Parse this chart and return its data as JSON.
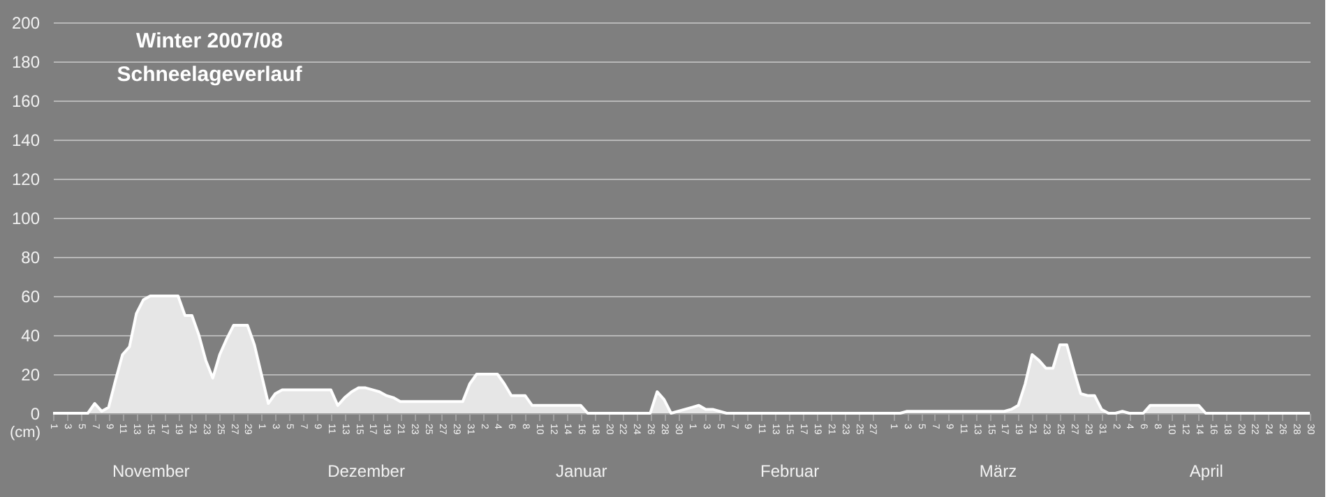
{
  "chart_data": {
    "type": "area",
    "title": "Winter 2007/08",
    "subtitle": "Schneelageverlauf",
    "ylabel": "(cm)",
    "series": [
      {
        "color": "#e6e6e6",
        "x": [
          "2007-11-01",
          "2007-11-06",
          "2007-11-07",
          "2007-11-08",
          "2007-11-09",
          "2007-11-10",
          "2007-11-11",
          "2007-11-12",
          "2007-11-13",
          "2007-11-14",
          "2007-11-15",
          "2007-11-19",
          "2007-11-20",
          "2007-11-21",
          "2007-11-22",
          "2007-11-23",
          "2007-11-24",
          "2007-11-25",
          "2007-11-26",
          "2007-11-27",
          "2007-11-29",
          "2007-11-30",
          "2007-12-01",
          "2007-12-02",
          "2007-12-03",
          "2007-12-04",
          "2007-12-11",
          "2007-12-12",
          "2007-12-13",
          "2007-12-14",
          "2007-12-15",
          "2007-12-16",
          "2007-12-17",
          "2007-12-18",
          "2007-12-19",
          "2007-12-20",
          "2007-12-21",
          "2007-12-30",
          "2007-12-31",
          "2008-01-01",
          "2008-01-04",
          "2008-01-05",
          "2008-01-06",
          "2008-01-08",
          "2008-01-09",
          "2008-01-16",
          "2008-01-17",
          "2008-01-26",
          "2008-01-27",
          "2008-01-28",
          "2008-01-29",
          "2008-01-30",
          "2008-01-31",
          "2008-02-01",
          "2008-02-02",
          "2008-02-03",
          "2008-02-04",
          "2008-02-05",
          "2008-02-06",
          "2008-03-02",
          "2008-03-03",
          "2008-03-17",
          "2008-03-18",
          "2008-03-19",
          "2008-03-20",
          "2008-03-21",
          "2008-03-22",
          "2008-03-23",
          "2008-03-24",
          "2008-03-25",
          "2008-03-26",
          "2008-03-27",
          "2008-03-28",
          "2008-03-29",
          "2008-03-30",
          "2008-03-31",
          "2008-04-01",
          "2008-04-02",
          "2008-04-03",
          "2008-04-04",
          "2008-04-06",
          "2008-04-07",
          "2008-04-14",
          "2008-04-15",
          "2008-04-30"
        ],
        "values": [
          0,
          0,
          5,
          1,
          3,
          17,
          30,
          34,
          51,
          58,
          60,
          60,
          50,
          50,
          40,
          27,
          18,
          30,
          38,
          45,
          45,
          35,
          20,
          5,
          10,
          12,
          12,
          4,
          8,
          11,
          13,
          13,
          12,
          11,
          9,
          8,
          6,
          6,
          15,
          20,
          20,
          15,
          9,
          9,
          4,
          4,
          0,
          0,
          11,
          7,
          0,
          1,
          2,
          3,
          4,
          2,
          2,
          1,
          0,
          0,
          1,
          1,
          2,
          4,
          15,
          30,
          27,
          23,
          23,
          35,
          35,
          22,
          10,
          9,
          9,
          2,
          0,
          0,
          1,
          0,
          0,
          4,
          4,
          0,
          0
        ]
      }
    ],
    "xlim": [
      "2007-11-01",
      "2008-04-30"
    ],
    "xticks": [
      {
        "value": "2007-11-01",
        "label": "1"
      },
      {
        "value": "2007-11-03",
        "label": "3"
      },
      {
        "value": "2007-11-05",
        "label": "5"
      },
      {
        "value": "2007-11-07",
        "label": "7"
      },
      {
        "value": "2007-11-09",
        "label": "9"
      },
      {
        "value": "2007-11-11",
        "label": "11"
      },
      {
        "value": "2007-11-13",
        "label": "13"
      },
      {
        "value": "2007-11-15",
        "label": "15"
      },
      {
        "value": "2007-11-17",
        "label": "17"
      },
      {
        "value": "2007-11-19",
        "label": "19"
      },
      {
        "value": "2007-11-21",
        "label": "21"
      },
      {
        "value": "2007-11-23",
        "label": "23"
      },
      {
        "value": "2007-11-25",
        "label": "25"
      },
      {
        "value": "2007-11-27",
        "label": "27"
      },
      {
        "value": "2007-11-29",
        "label": "29"
      },
      {
        "value": "2007-12-01",
        "label": "1"
      },
      {
        "value": "2007-12-03",
        "label": "3"
      },
      {
        "value": "2007-12-05",
        "label": "5"
      },
      {
        "value": "2007-12-07",
        "label": "7"
      },
      {
        "value": "2007-12-09",
        "label": "9"
      },
      {
        "value": "2007-12-11",
        "label": "11"
      },
      {
        "value": "2007-12-13",
        "label": "13"
      },
      {
        "value": "2007-12-15",
        "label": "15"
      },
      {
        "value": "2007-12-17",
        "label": "17"
      },
      {
        "value": "2007-12-19",
        "label": "19"
      },
      {
        "value": "2007-12-21",
        "label": "21"
      },
      {
        "value": "2007-12-23",
        "label": "23"
      },
      {
        "value": "2007-12-25",
        "label": "25"
      },
      {
        "value": "2007-12-27",
        "label": "27"
      },
      {
        "value": "2007-12-29",
        "label": "29"
      },
      {
        "value": "2007-12-31",
        "label": "31"
      },
      {
        "value": "2008-01-02",
        "label": "2"
      },
      {
        "value": "2008-01-04",
        "label": "4"
      },
      {
        "value": "2008-01-06",
        "label": "6"
      },
      {
        "value": "2008-01-08",
        "label": "8"
      },
      {
        "value": "2008-01-10",
        "label": "10"
      },
      {
        "value": "2008-01-12",
        "label": "12"
      },
      {
        "value": "2008-01-14",
        "label": "14"
      },
      {
        "value": "2008-01-16",
        "label": "16"
      },
      {
        "value": "2008-01-18",
        "label": "18"
      },
      {
        "value": "2008-01-20",
        "label": "20"
      },
      {
        "value": "2008-01-22",
        "label": "22"
      },
      {
        "value": "2008-01-24",
        "label": "24"
      },
      {
        "value": "2008-01-26",
        "label": "26"
      },
      {
        "value": "2008-01-28",
        "label": "28"
      },
      {
        "value": "2008-01-30",
        "label": "30"
      },
      {
        "value": "2008-02-01",
        "label": "1"
      },
      {
        "value": "2008-02-03",
        "label": "3"
      },
      {
        "value": "2008-02-05",
        "label": "5"
      },
      {
        "value": "2008-02-07",
        "label": "7"
      },
      {
        "value": "2008-02-09",
        "label": "9"
      },
      {
        "value": "2008-02-11",
        "label": "11"
      },
      {
        "value": "2008-02-13",
        "label": "13"
      },
      {
        "value": "2008-02-15",
        "label": "15"
      },
      {
        "value": "2008-02-17",
        "label": "17"
      },
      {
        "value": "2008-02-19",
        "label": "19"
      },
      {
        "value": "2008-02-21",
        "label": "21"
      },
      {
        "value": "2008-02-23",
        "label": "23"
      },
      {
        "value": "2008-02-25",
        "label": "25"
      },
      {
        "value": "2008-02-27",
        "label": "27"
      },
      {
        "value": "2008-03-01",
        "label": "1"
      },
      {
        "value": "2008-03-03",
        "label": "3"
      },
      {
        "value": "2008-03-05",
        "label": "5"
      },
      {
        "value": "2008-03-07",
        "label": "7"
      },
      {
        "value": "2008-03-09",
        "label": "9"
      },
      {
        "value": "2008-03-11",
        "label": "11"
      },
      {
        "value": "2008-03-13",
        "label": "13"
      },
      {
        "value": "2008-03-15",
        "label": "15"
      },
      {
        "value": "2008-03-17",
        "label": "17"
      },
      {
        "value": "2008-03-19",
        "label": "19"
      },
      {
        "value": "2008-03-21",
        "label": "21"
      },
      {
        "value": "2008-03-23",
        "label": "23"
      },
      {
        "value": "2008-03-25",
        "label": "25"
      },
      {
        "value": "2008-03-27",
        "label": "27"
      },
      {
        "value": "2008-03-29",
        "label": "29"
      },
      {
        "value": "2008-03-31",
        "label": "31"
      },
      {
        "value": "2008-04-02",
        "label": "2"
      },
      {
        "value": "2008-04-04",
        "label": "4"
      },
      {
        "value": "2008-04-06",
        "label": "6"
      },
      {
        "value": "2008-04-08",
        "label": "8"
      },
      {
        "value": "2008-04-10",
        "label": "10"
      },
      {
        "value": "2008-04-12",
        "label": "12"
      },
      {
        "value": "2008-04-14",
        "label": "14"
      },
      {
        "value": "2008-04-16",
        "label": "16"
      },
      {
        "value": "2008-04-18",
        "label": "18"
      },
      {
        "value": "2008-04-20",
        "label": "20"
      },
      {
        "value": "2008-04-22",
        "label": "22"
      },
      {
        "value": "2008-04-24",
        "label": "24"
      },
      {
        "value": "2008-04-26",
        "label": "26"
      },
      {
        "value": "2008-04-28",
        "label": "28"
      },
      {
        "value": "2008-04-30",
        "label": "30"
      }
    ],
    "ylim": [
      0,
      200
    ],
    "yticks": [
      0,
      20,
      40,
      60,
      80,
      100,
      120,
      140,
      160,
      180,
      200
    ],
    "grid": "y",
    "x2lim": [
      "2007-11-01",
      "2008-04-30"
    ],
    "x2ticks": [
      {
        "value": "2007-11-15",
        "label": "November"
      },
      {
        "value": "2007-12-16",
        "label": "Dezember"
      },
      {
        "value": "2008-01-16",
        "label": "Januar"
      },
      {
        "value": "2008-02-15",
        "label": "Februar"
      },
      {
        "value": "2008-03-16",
        "label": "März"
      },
      {
        "value": "2008-04-15",
        "label": "April"
      }
    ]
  }
}
